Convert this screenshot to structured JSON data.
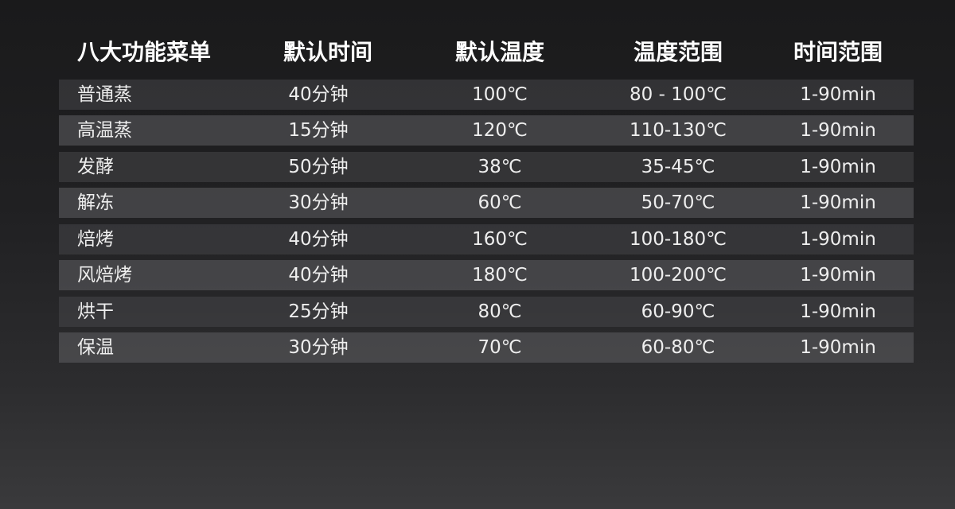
{
  "table": {
    "headers": [
      "八大功能菜单",
      "默认时间",
      "默认温度",
      "温度范围",
      "时间范围"
    ],
    "rows": [
      [
        "普通蒸",
        "40分钟",
        "100℃",
        "80 - 100℃",
        "1-90min"
      ],
      [
        "高温蒸",
        "15分钟",
        "120℃",
        "110-130℃",
        "1-90min"
      ],
      [
        "发酵",
        "50分钟",
        "38℃",
        "35-45℃",
        "1-90min"
      ],
      [
        "解冻",
        "30分钟",
        "60℃",
        "50-70℃",
        "1-90min"
      ],
      [
        "焙烤",
        "40分钟",
        "160℃",
        "100-180℃",
        "1-90min"
      ],
      [
        "风焙烤",
        "40分钟",
        "180℃",
        "100-200℃",
        "1-90min"
      ],
      [
        "烘干",
        "25分钟",
        "80℃",
        "60-90℃",
        "1-90min"
      ],
      [
        "保温",
        "30分钟",
        "70℃",
        "60-80℃",
        "1-90min"
      ]
    ]
  }
}
